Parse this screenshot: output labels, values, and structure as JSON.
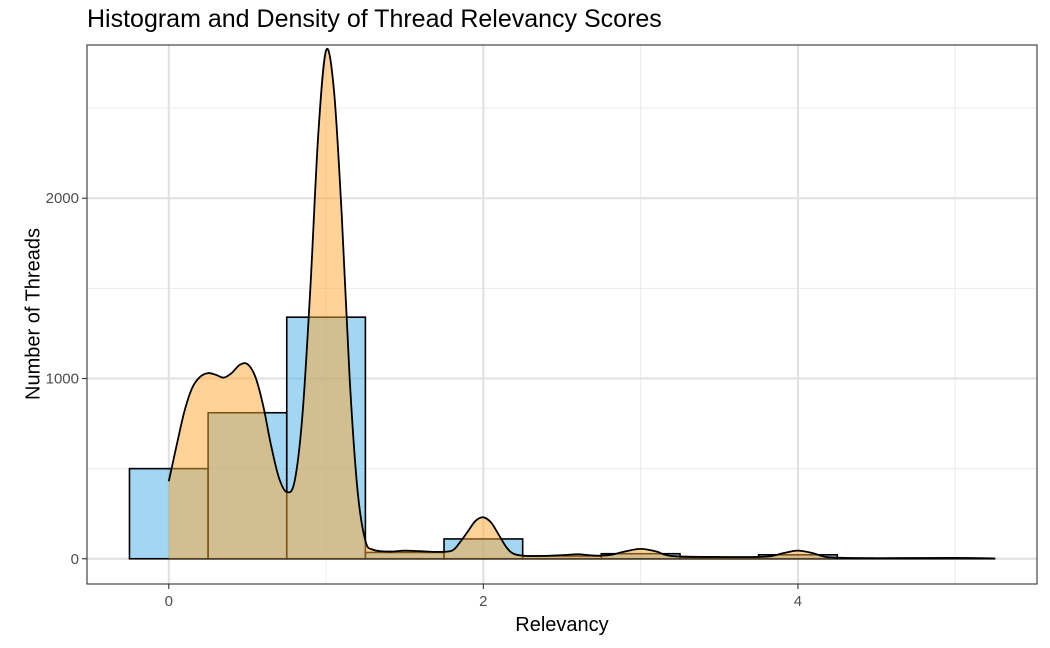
{
  "chart_data": {
    "type": "histogram+density",
    "title": "Histogram and Density of Thread Relevancy Scores",
    "xlabel": "Relevancy",
    "ylabel": "Number of Threads",
    "xlim": [
      -0.52,
      5.52
    ],
    "ylim": [
      -140,
      2850
    ],
    "x_ticks": [
      0,
      2,
      4
    ],
    "y_ticks": [
      0,
      1000,
      2000
    ],
    "x_minor": [
      1,
      3,
      5
    ],
    "y_minor": [
      500,
      1500,
      2500
    ],
    "grid": true,
    "histogram": {
      "fill": "#56B4E9",
      "opacity": 0.55,
      "bins": [
        {
          "x0": -0.25,
          "x1": 0.25,
          "count": 500
        },
        {
          "x0": 0.25,
          "x1": 0.75,
          "count": 810
        },
        {
          "x0": 0.75,
          "x1": 1.25,
          "count": 1340
        },
        {
          "x0": 1.25,
          "x1": 1.75,
          "count": 35
        },
        {
          "x0": 1.75,
          "x1": 2.25,
          "count": 110
        },
        {
          "x0": 2.25,
          "x1": 2.75,
          "count": 15
        },
        {
          "x0": 2.75,
          "x1": 3.25,
          "count": 28
        },
        {
          "x0": 3.25,
          "x1": 3.75,
          "count": 5
        },
        {
          "x0": 3.75,
          "x1": 4.25,
          "count": 22
        },
        {
          "x0": 4.25,
          "x1": 4.75,
          "count": 3
        },
        {
          "x0": 4.75,
          "x1": 5.25,
          "count": 2
        }
      ]
    },
    "density": {
      "fill": "#FFA630",
      "opacity": 0.5,
      "points": [
        [
          0.0,
          430
        ],
        [
          0.05,
          630
        ],
        [
          0.1,
          820
        ],
        [
          0.15,
          950
        ],
        [
          0.2,
          1010
        ],
        [
          0.25,
          1030
        ],
        [
          0.3,
          1020
        ],
        [
          0.35,
          1005
        ],
        [
          0.4,
          1030
        ],
        [
          0.45,
          1075
        ],
        [
          0.5,
          1080
        ],
        [
          0.55,
          1010
        ],
        [
          0.6,
          850
        ],
        [
          0.65,
          630
        ],
        [
          0.7,
          450
        ],
        [
          0.75,
          370
        ],
        [
          0.8,
          430
        ],
        [
          0.85,
          800
        ],
        [
          0.9,
          1500
        ],
        [
          0.95,
          2350
        ],
        [
          1.0,
          2820
        ],
        [
          1.05,
          2600
        ],
        [
          1.1,
          1900
        ],
        [
          1.15,
          1000
        ],
        [
          1.2,
          380
        ],
        [
          1.25,
          100
        ],
        [
          1.3,
          50
        ],
        [
          1.4,
          40
        ],
        [
          1.5,
          45
        ],
        [
          1.6,
          42
        ],
        [
          1.7,
          38
        ],
        [
          1.8,
          45
        ],
        [
          1.85,
          90
        ],
        [
          1.9,
          150
        ],
        [
          1.95,
          210
        ],
        [
          2.0,
          230
        ],
        [
          2.05,
          200
        ],
        [
          2.1,
          130
        ],
        [
          2.15,
          60
        ],
        [
          2.2,
          25
        ],
        [
          2.3,
          15
        ],
        [
          2.5,
          20
        ],
        [
          2.6,
          25
        ],
        [
          2.7,
          18
        ],
        [
          2.8,
          20
        ],
        [
          2.9,
          40
        ],
        [
          3.0,
          55
        ],
        [
          3.1,
          40
        ],
        [
          3.2,
          15
        ],
        [
          3.5,
          10
        ],
        [
          3.8,
          12
        ],
        [
          3.9,
          30
        ],
        [
          4.0,
          45
        ],
        [
          4.1,
          30
        ],
        [
          4.2,
          8
        ],
        [
          4.5,
          3
        ],
        [
          5.0,
          5
        ],
        [
          5.25,
          2
        ]
      ]
    }
  }
}
